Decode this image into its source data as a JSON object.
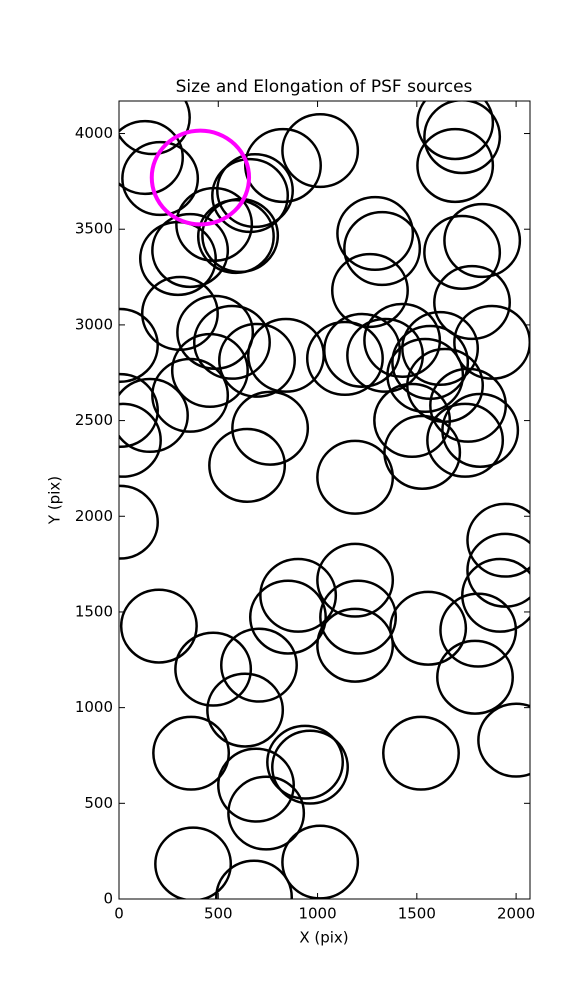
{
  "chart_data": {
    "type": "ellipses",
    "title": "Size and Elongation of PSF sources",
    "x_label": "X (pix)",
    "y_label": "Y (pix)",
    "xlim": [
      0,
      2070
    ],
    "ylim": [
      0,
      4170
    ],
    "xticks": [
      0,
      500,
      1000,
      1500,
      2000
    ],
    "yticks": [
      0,
      500,
      1000,
      1500,
      2000,
      2500,
      3000,
      3500,
      4000
    ],
    "series": [
      {
        "color": "#000000",
        "size": 190,
        "x": [
          166,
          131,
          207,
          1693,
          1728,
          1693,
          1013,
          826,
          685,
          660,
          479,
          610,
          589,
          358,
          297,
          1290,
          1325,
          1728,
          1829,
          1264,
          1778,
          307,
          5,
          484,
          569,
          841,
          695,
          458,
          1138,
          1224,
          1426,
          1340,
          1617,
          1879,
          1567,
          1542,
          1642,
          358,
          5,
          156,
          20,
          761,
          1476,
          1758,
          1819,
          1743,
          1527,
          645,
          1189,
          5,
          1945,
          1945,
          1919,
          1189,
          902,
          851,
          1204,
          1189,
          201,
          1557,
          1809,
          1793,
          474,
          705,
          635,
          2000,
          1521,
          363,
          937,
          962,
          690,
          741,
          373,
          1013,
          680
        ],
        "y": [
          4083,
          3875,
          3765,
          4057,
          3984,
          3833,
          3911,
          3833,
          3702,
          3676,
          3525,
          3467,
          3462,
          3389,
          3347,
          3478,
          3399,
          3379,
          3441,
          3180,
          3117,
          3060,
          2893,
          2961,
          2909,
          2841,
          2815,
          2762,
          2825,
          2867,
          2919,
          2841,
          2877,
          2909,
          2804,
          2736,
          2684,
          2632,
          2553,
          2527,
          2397,
          2460,
          2501,
          2580,
          2449,
          2397,
          2334,
          2266,
          2204,
          1969,
          1875,
          1718,
          1587,
          1666,
          1587,
          1473,
          1473,
          1326,
          1426,
          1415,
          1405,
          1159,
          1201,
          1222,
          987,
          830,
          762,
          762,
          715,
          689,
          595,
          449,
          183,
          193,
          10
        ]
      },
      {
        "color": "#ff00ff",
        "size": 245,
        "x": [
          410
        ],
        "y": [
          3770
        ]
      }
    ]
  }
}
